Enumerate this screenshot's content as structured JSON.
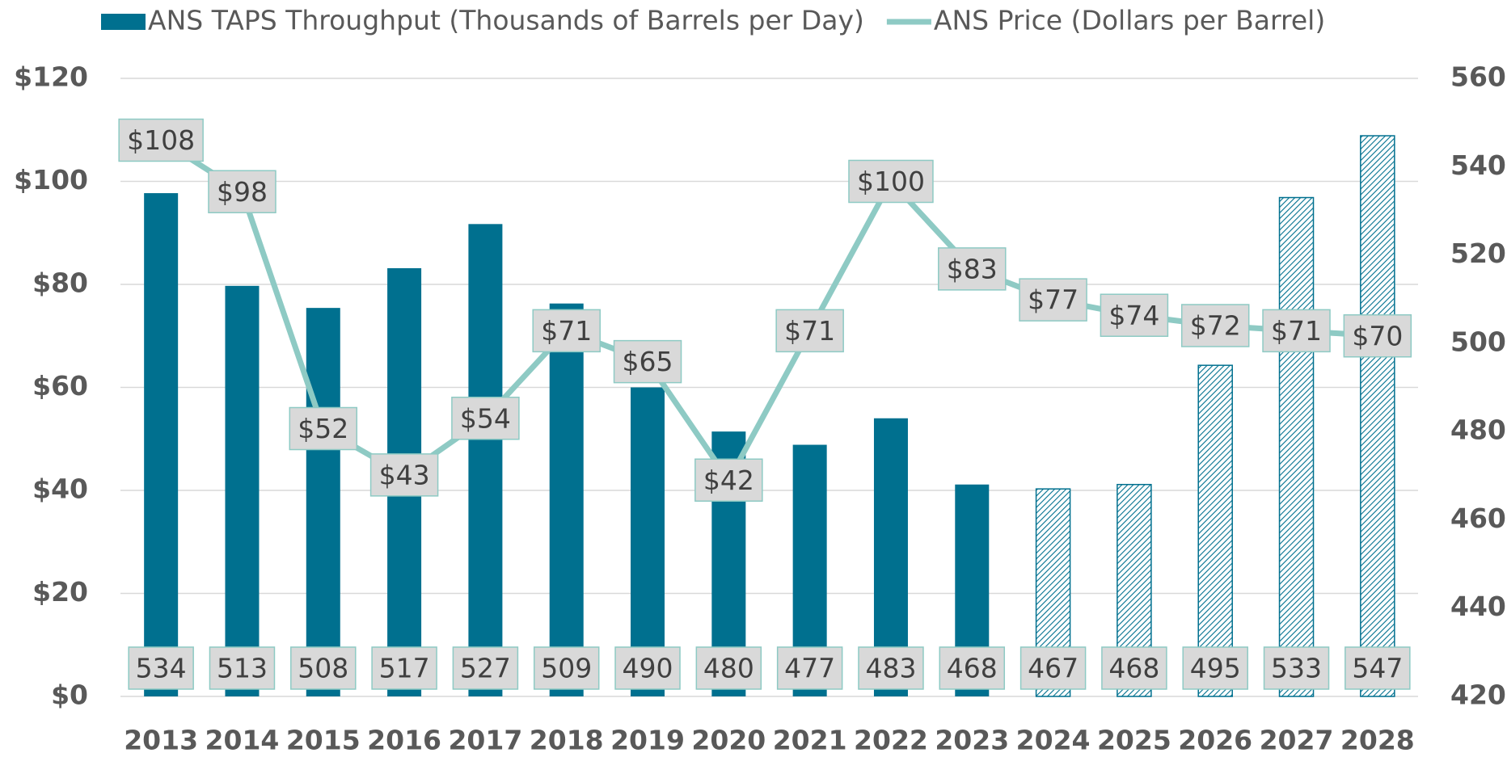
{
  "chart_data": {
    "type": "bar_line",
    "categories": [
      "2013",
      "2014",
      "2015",
      "2016",
      "2017",
      "2018",
      "2019",
      "2020",
      "2021",
      "2022",
      "2023",
      "2024",
      "2025",
      "2026",
      "2027",
      "2028"
    ],
    "series": [
      {
        "name": "ANS TAPS Throughput (Thousands of Barrels per Day)",
        "type": "bar",
        "axis": "y2",
        "color": "#00708f",
        "values": [
          534,
          513,
          508,
          517,
          527,
          509,
          490,
          480,
          477,
          483,
          468,
          467,
          468,
          495,
          533,
          547
        ],
        "hatch": [
          false,
          false,
          false,
          false,
          false,
          false,
          false,
          false,
          false,
          false,
          false,
          true,
          true,
          true,
          true,
          true
        ]
      },
      {
        "name": "ANS Price (Dollars per Barrel)",
        "type": "line",
        "axis": "y",
        "color": "#8ecac4",
        "values": [
          108,
          98,
          52,
          43,
          54,
          71,
          65,
          42,
          71,
          100,
          83,
          77,
          74,
          72,
          71,
          70
        ],
        "value_labels": [
          "$108",
          "$98",
          "$52",
          "$43",
          "$54",
          "$71",
          "$65",
          "$42",
          "$71",
          "$100",
          "$83",
          "$77",
          "$74",
          "$72",
          "$71",
          "$70"
        ]
      }
    ],
    "ylim": [
      0,
      120
    ],
    "yticks": [
      {
        "value": 0,
        "label": "$0"
      },
      {
        "value": 20,
        "label": "$20"
      },
      {
        "value": 40,
        "label": "$40"
      },
      {
        "value": 60,
        "label": "$60"
      },
      {
        "value": 80,
        "label": "$80"
      },
      {
        "value": 100,
        "label": "$100"
      },
      {
        "value": 120,
        "label": "$120"
      }
    ],
    "y2lim": [
      420,
      560
    ],
    "y2ticks": [
      420,
      440,
      460,
      480,
      500,
      520,
      540,
      560
    ],
    "grid": true,
    "legend": "top"
  }
}
